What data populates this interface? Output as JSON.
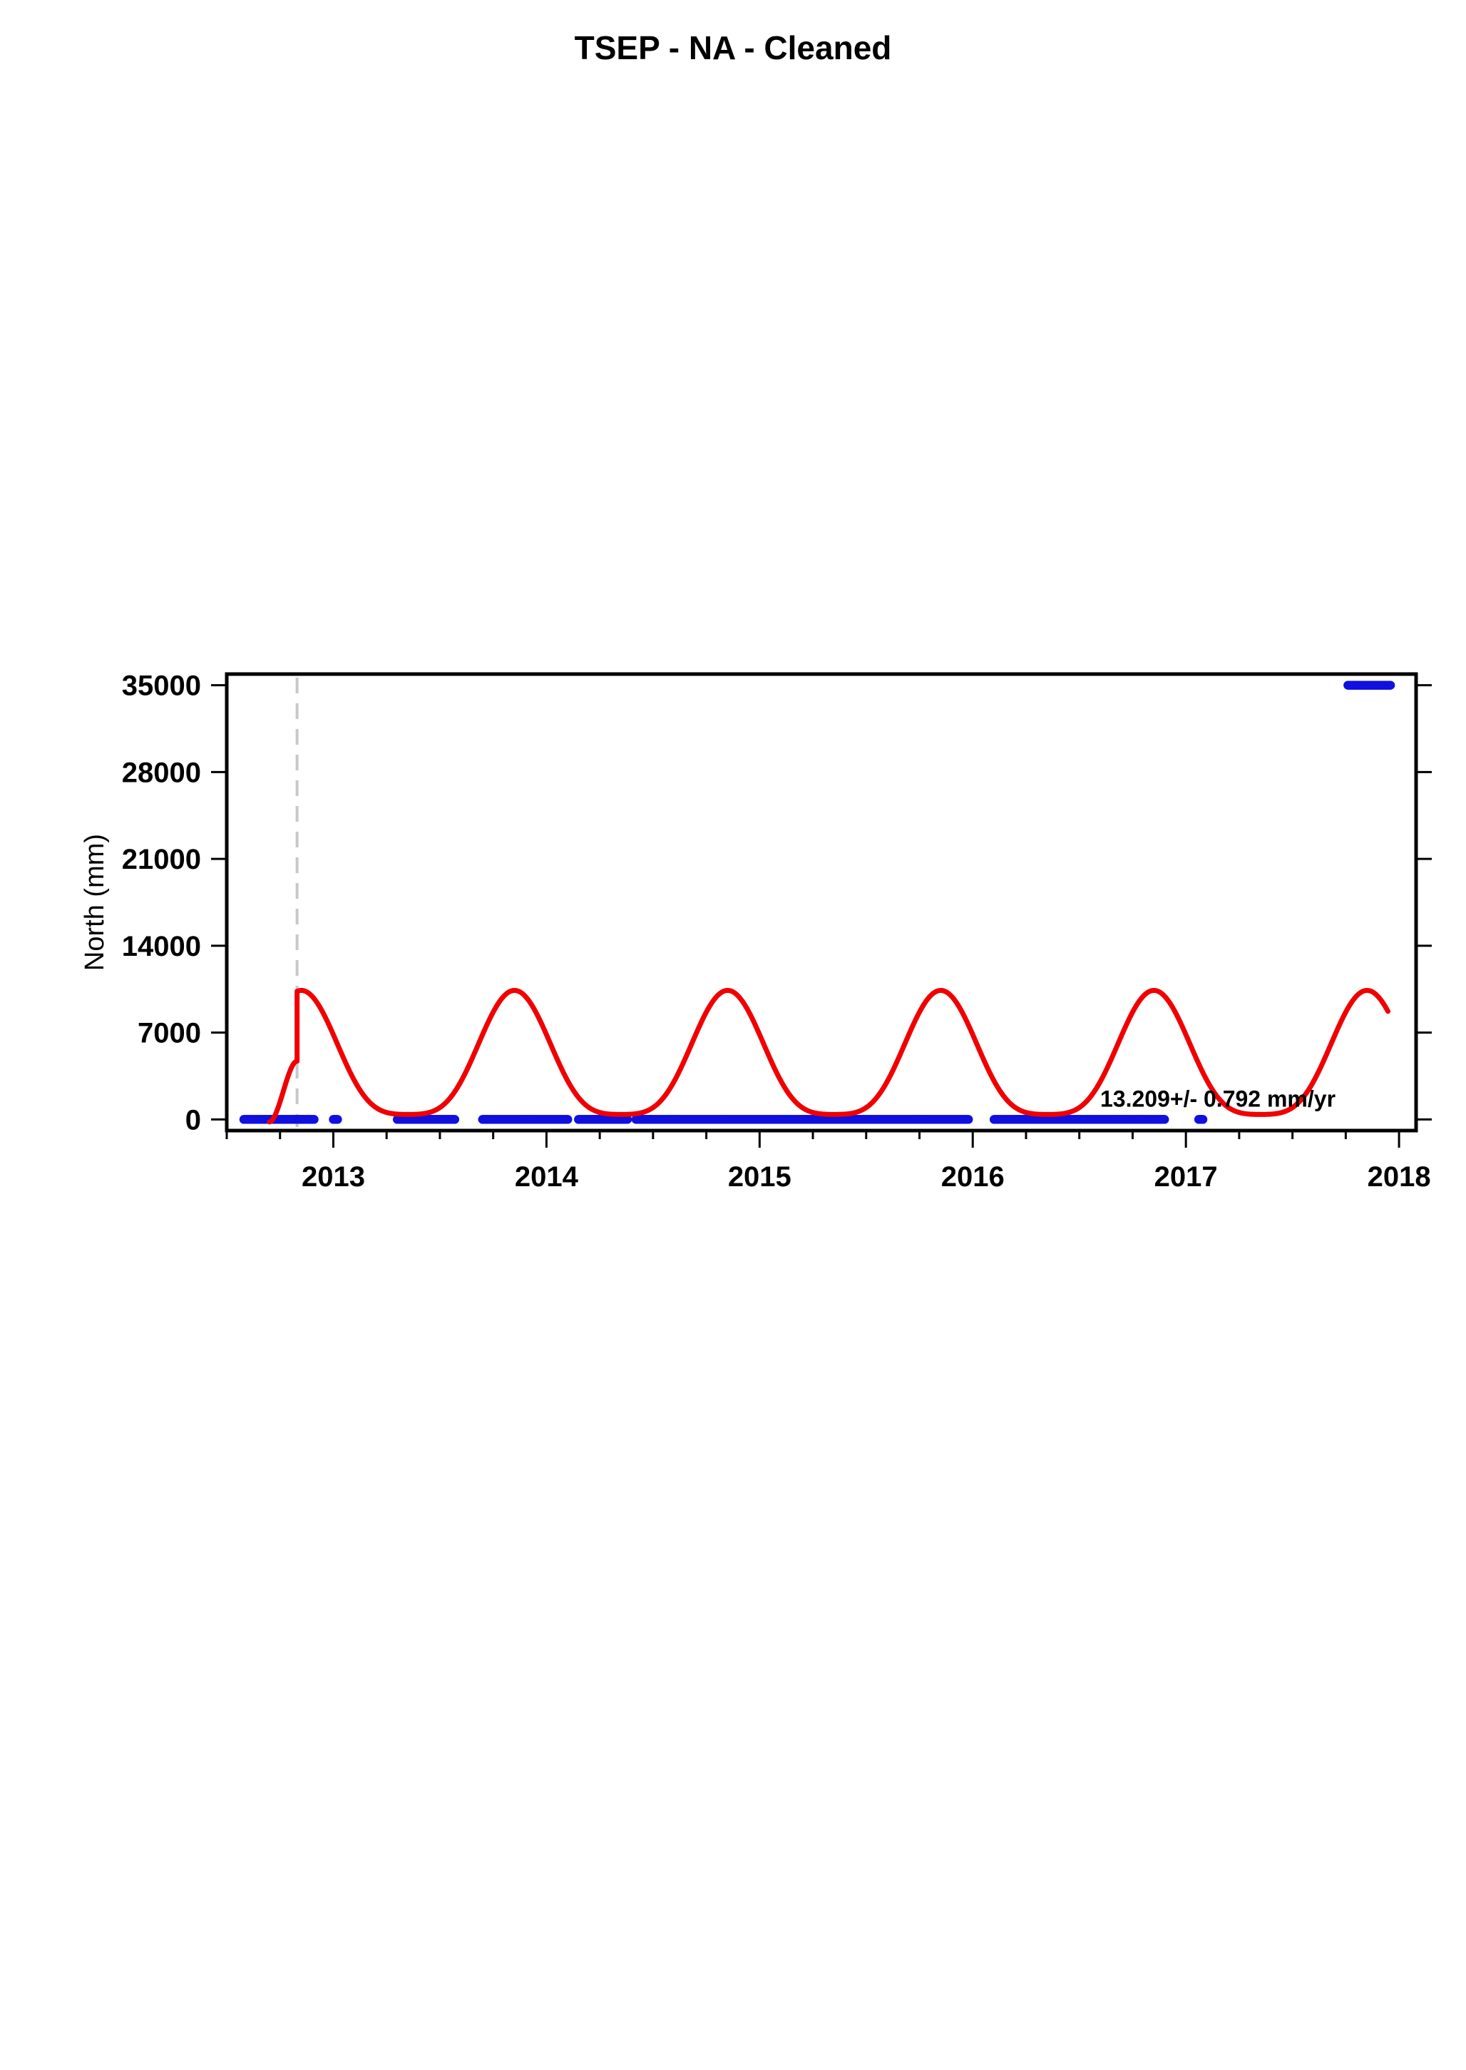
{
  "header": {
    "title": "TSEP  - NA - Cleaned",
    "subtitle": ""
  },
  "chart_data": {
    "type": "scatter",
    "ylabel": "North (mm)",
    "xlabel": "",
    "rate_text": "13.209+/- 0.792 mm/yr",
    "xlim": [
      2012.5,
      2018.08
    ],
    "ylim": [
      -900,
      35900
    ],
    "x_ticks": [
      2013,
      2014,
      2015,
      2016,
      2017,
      2018
    ],
    "y_ticks": [
      0,
      7000,
      14000,
      21000,
      28000,
      35000
    ],
    "grid": false,
    "event_line_x": 2012.83,
    "colors": {
      "data": "#1010e0",
      "model": "#f00000",
      "event": "#c8c8c8",
      "frame": "#000000"
    },
    "segments": [
      {
        "start": 2012.58,
        "end": 2012.91,
        "value": 0
      },
      {
        "start": 2013.0,
        "end": 2013.02,
        "value": 0
      },
      {
        "start": 2013.7,
        "end": 2014.1,
        "value": 0
      },
      {
        "start": 2013.3,
        "end": 2013.57,
        "value": 0
      },
      {
        "start": 2014.15,
        "end": 2014.38,
        "value": 0
      },
      {
        "start": 2014.42,
        "end": 2015.98,
        "value": 0
      },
      {
        "start": 2016.1,
        "end": 2016.9,
        "value": 0
      },
      {
        "start": 2017.06,
        "end": 2017.08,
        "value": 0
      },
      {
        "start": 2017.76,
        "end": 2017.96,
        "value": 35000
      }
    ],
    "model": {
      "name": "",
      "pre_event_start": [
        2012.7,
        -200
      ],
      "pre_event_end": [
        2012.83,
        4700
      ],
      "post_event_jump": [
        2012.83,
        9300
      ],
      "annual_center": 4250,
      "annual_amplitude": 5000,
      "semiannual_amplitude": 1150,
      "phase_peak": 2012.85,
      "end": 2017.95
    }
  }
}
